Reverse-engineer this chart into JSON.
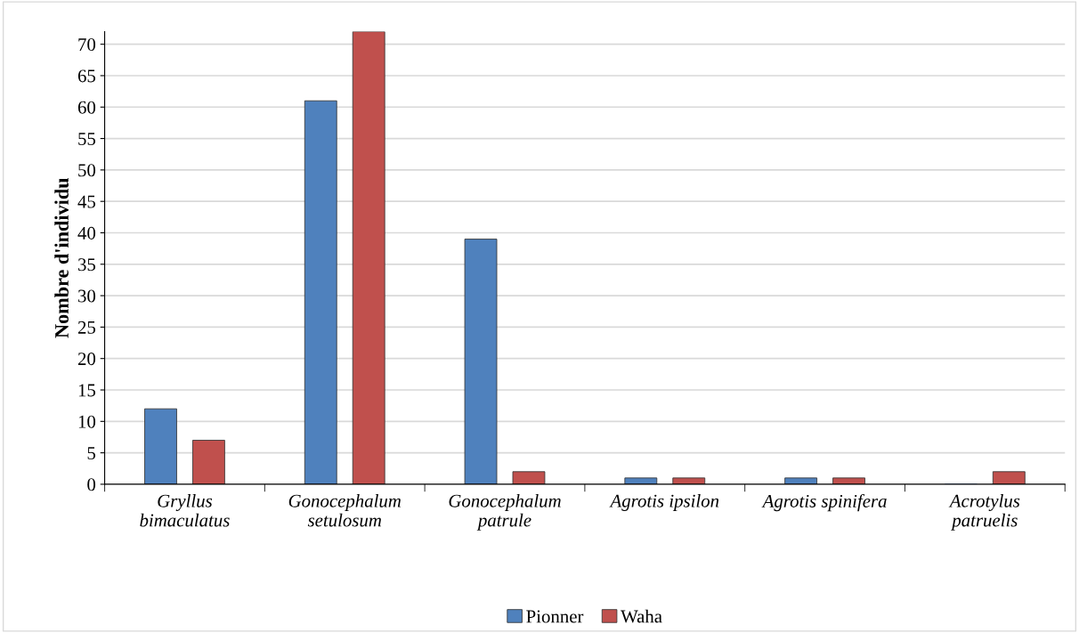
{
  "chart_data": {
    "type": "bar",
    "ylabel": "Nombre d'individu",
    "categories": [
      "Gryllus\nbimaculatus",
      "Gonocephalum\nsetulosum",
      "Gonocephalum\npatrule",
      "Agrotis ipsilon",
      "Agrotis spinifera",
      "Acrotylus\npatruelis"
    ],
    "series": [
      {
        "name": "Pionner",
        "color": "#4f81bd",
        "values": [
          12,
          61,
          39,
          1,
          1,
          0
        ]
      },
      {
        "name": "Waha",
        "color": "#c0504d",
        "values": [
          7,
          72,
          2,
          1,
          1,
          2
        ]
      }
    ],
    "ylim": [
      0,
      72
    ],
    "yticks": [
      0,
      5,
      10,
      15,
      20,
      25,
      30,
      35,
      40,
      45,
      50,
      55,
      60,
      65,
      70
    ],
    "grid": "y",
    "legend": "bottom"
  }
}
